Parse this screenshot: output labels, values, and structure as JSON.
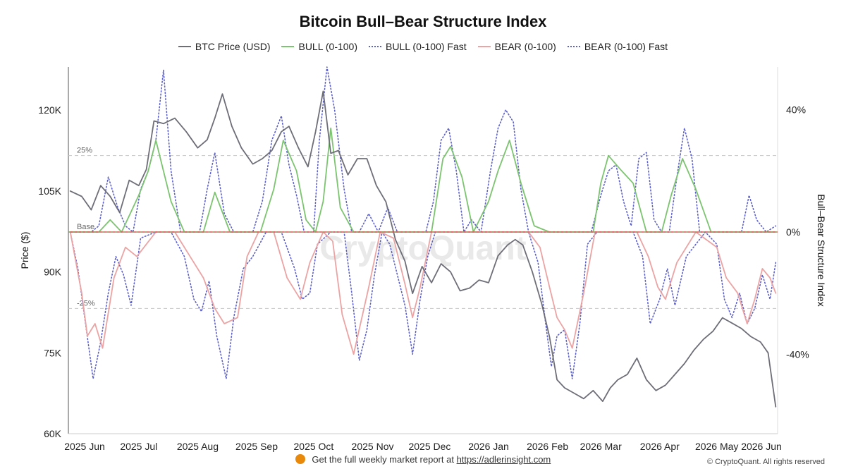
{
  "chart_data": {
    "type": "line",
    "title": "Bitcoin Bull–Bear Structure Index",
    "ylabel": "Price ($)",
    "y2label": "Bull–Bear Structure Index",
    "xlim": [
      "2025-05-25",
      "2026-06-02"
    ],
    "ylim": [
      60000,
      128000
    ],
    "y2lim": [
      -66,
      54
    ],
    "x_ticks": [
      {
        "date": "2025-06-01",
        "label": "2025 Jun"
      },
      {
        "date": "2025-07-01",
        "label": "2025 Jul"
      },
      {
        "date": "2025-08-01",
        "label": "2025 Aug"
      },
      {
        "date": "2025-09-01",
        "label": "2025 Sep"
      },
      {
        "date": "2025-10-01",
        "label": "2025 Oct"
      },
      {
        "date": "2025-11-01",
        "label": "2025 Nov"
      },
      {
        "date": "2025-12-01",
        "label": "2025 Dec"
      },
      {
        "date": "2026-01-01",
        "label": "2026 Jan"
      },
      {
        "date": "2026-02-01",
        "label": "2026 Feb"
      },
      {
        "date": "2026-03-01",
        "label": "2026 Mar"
      },
      {
        "date": "2026-04-01",
        "label": "2026 Apr"
      },
      {
        "date": "2026-05-01",
        "label": "2026 May"
      },
      {
        "date": "2026-06-01",
        "label": "2026 Jun"
      }
    ],
    "y_ticks": [
      {
        "value": 60000,
        "label": "60K"
      },
      {
        "value": 75000,
        "label": "75K"
      },
      {
        "value": 90000,
        "label": "90K"
      },
      {
        "value": 105000,
        "label": "105K"
      },
      {
        "value": 120000,
        "label": "120K"
      }
    ],
    "y2_ticks": [
      {
        "value": -40,
        "label": "-40%"
      },
      {
        "value": 0,
        "label": "0%"
      },
      {
        "value": 40,
        "label": "40%"
      }
    ],
    "reference_lines": [
      {
        "value": 25,
        "label": "25%"
      },
      {
        "value": 0,
        "label": "Base"
      },
      {
        "value": -25,
        "label": "-25%"
      }
    ],
    "grid": false,
    "legend_position": "top-center",
    "series": [
      {
        "name": "BTC Price (USD)",
        "axis": "left",
        "style": "solid",
        "color": "#6e6e78",
        "x": [
          "2025-05-26",
          "2025-06-01",
          "2025-06-06",
          "2025-06-11",
          "2025-06-16",
          "2025-06-21",
          "2025-06-26",
          "2025-07-01",
          "2025-07-05",
          "2025-07-09",
          "2025-07-14",
          "2025-07-20",
          "2025-07-26",
          "2025-08-01",
          "2025-08-06",
          "2025-08-10",
          "2025-08-14",
          "2025-08-19",
          "2025-08-24",
          "2025-08-30",
          "2025-09-04",
          "2025-09-09",
          "2025-09-14",
          "2025-09-18",
          "2025-09-23",
          "2025-09-28",
          "2025-10-02",
          "2025-10-06",
          "2025-10-10",
          "2025-10-14",
          "2025-10-19",
          "2025-10-24",
          "2025-10-29",
          "2025-11-03",
          "2025-11-08",
          "2025-11-13",
          "2025-11-18",
          "2025-11-22",
          "2025-11-27",
          "2025-12-02",
          "2025-12-07",
          "2025-12-12",
          "2025-12-17",
          "2025-12-22",
          "2025-12-27",
          "2026-01-01",
          "2026-01-06",
          "2026-01-11",
          "2026-01-15",
          "2026-01-19",
          "2026-01-24",
          "2026-01-29",
          "2026-02-02",
          "2026-02-06",
          "2026-02-10",
          "2026-02-15",
          "2026-02-20",
          "2026-02-25",
          "2026-03-02",
          "2026-03-06",
          "2026-03-10",
          "2026-03-15",
          "2026-03-20",
          "2026-03-25",
          "2026-03-30",
          "2026-04-04",
          "2026-04-09",
          "2026-04-14",
          "2026-04-19",
          "2026-04-24",
          "2026-04-29",
          "2026-05-04",
          "2026-05-09",
          "2026-05-14",
          "2026-05-19",
          "2026-05-24",
          "2026-05-28",
          "2026-06-01"
        ],
        "values": [
          105000,
          104000,
          101500,
          106000,
          104000,
          101000,
          107000,
          106000,
          109000,
          118000,
          117500,
          118500,
          116000,
          113000,
          114500,
          118500,
          123000,
          117000,
          113000,
          110000,
          111000,
          112500,
          116000,
          117000,
          113000,
          109500,
          116000,
          123500,
          112000,
          112500,
          108000,
          111000,
          111000,
          106000,
          103000,
          96000,
          92000,
          86000,
          91000,
          88000,
          91500,
          90000,
          86500,
          87000,
          88500,
          88000,
          93000,
          95000,
          96000,
          95000,
          90000,
          84000,
          78000,
          70000,
          68500,
          67500,
          66500,
          68000,
          66000,
          68500,
          70000,
          71000,
          74000,
          70000,
          68000,
          69000,
          71000,
          73000,
          75500,
          77500,
          79000,
          81500,
          80500,
          79500,
          78000,
          77000,
          75000,
          65000
        ]
      },
      {
        "name": "BULL (0-100)",
        "axis": "right",
        "style": "solid",
        "color": "#7cc46f",
        "x": [
          "2025-05-26",
          "2025-06-03",
          "2025-06-10",
          "2025-06-16",
          "2025-06-22",
          "2025-07-01",
          "2025-07-06",
          "2025-07-10",
          "2025-07-18",
          "2025-07-25",
          "2025-08-04",
          "2025-08-10",
          "2025-08-18",
          "2025-08-25",
          "2025-09-03",
          "2025-09-10",
          "2025-09-15",
          "2025-09-22",
          "2025-09-27",
          "2025-10-02",
          "2025-10-06",
          "2025-10-10",
          "2025-10-15",
          "2025-10-22",
          "2025-10-30",
          "2025-11-06",
          "2025-11-15",
          "2025-11-25",
          "2025-12-02",
          "2025-12-08",
          "2025-12-12",
          "2025-12-18",
          "2025-12-24",
          "2026-01-01",
          "2026-01-06",
          "2026-01-12",
          "2026-01-18",
          "2026-01-25",
          "2026-02-02",
          "2026-02-15",
          "2026-02-25",
          "2026-03-01",
          "2026-03-05",
          "2026-03-12",
          "2026-03-18",
          "2026-03-25",
          "2026-04-02",
          "2026-04-07",
          "2026-04-13",
          "2026-04-20",
          "2026-04-28",
          "2026-05-06",
          "2026-05-12",
          "2026-05-20",
          "2026-06-01"
        ],
        "values": [
          0,
          0,
          0,
          4,
          0,
          12,
          20,
          30,
          10,
          0,
          0,
          13,
          0,
          0,
          0,
          14,
          30,
          20,
          4,
          0,
          10,
          34,
          8,
          0,
          0,
          0,
          0,
          0,
          0,
          24,
          28,
          18,
          0,
          10,
          20,
          30,
          16,
          2,
          0,
          0,
          0,
          16,
          25,
          20,
          16,
          0,
          0,
          12,
          24,
          14,
          0,
          0,
          0,
          0,
          0
        ]
      },
      {
        "name": "BULL (0-100) Fast",
        "axis": "right",
        "style": "dotted",
        "color": "#5b5fc9",
        "x": [
          "2025-05-26",
          "2025-06-02",
          "2025-06-06",
          "2025-06-10",
          "2025-06-15",
          "2025-06-20",
          "2025-06-24",
          "2025-06-28",
          "2025-07-02",
          "2025-07-06",
          "2025-07-10",
          "2025-07-14",
          "2025-07-18",
          "2025-07-23",
          "2025-07-28",
          "2025-08-02",
          "2025-08-06",
          "2025-08-10",
          "2025-08-15",
          "2025-08-20",
          "2025-08-25",
          "2025-08-30",
          "2025-09-04",
          "2025-09-09",
          "2025-09-14",
          "2025-09-18",
          "2025-09-22",
          "2025-09-26",
          "2025-10-01",
          "2025-10-04",
          "2025-10-08",
          "2025-10-12",
          "2025-10-17",
          "2025-10-21",
          "2025-10-25",
          "2025-10-30",
          "2025-11-04",
          "2025-11-09",
          "2025-11-14",
          "2025-11-19",
          "2025-11-24",
          "2025-11-29",
          "2025-12-03",
          "2025-12-07",
          "2025-12-11",
          "2025-12-15",
          "2025-12-19",
          "2025-12-23",
          "2025-12-28",
          "2026-01-02",
          "2026-01-06",
          "2026-01-10",
          "2026-01-14",
          "2026-01-18",
          "2026-01-22",
          "2026-01-27",
          "2026-02-01",
          "2026-02-06",
          "2026-02-12",
          "2026-02-18",
          "2026-02-24",
          "2026-03-01",
          "2026-03-05",
          "2026-03-09",
          "2026-03-13",
          "2026-03-17",
          "2026-03-21",
          "2026-03-25",
          "2026-03-29",
          "2026-04-02",
          "2026-04-06",
          "2026-04-10",
          "2026-04-14",
          "2026-04-18",
          "2026-04-22",
          "2026-04-27",
          "2026-05-02",
          "2026-05-06",
          "2026-05-10",
          "2026-05-14",
          "2026-05-18",
          "2026-05-22",
          "2026-05-27",
          "2026-06-01"
        ],
        "values": [
          0,
          0,
          0,
          2,
          18,
          8,
          2,
          0,
          14,
          20,
          30,
          53,
          20,
          0,
          0,
          0,
          14,
          26,
          6,
          0,
          0,
          0,
          10,
          30,
          38,
          22,
          12,
          0,
          0,
          30,
          54,
          40,
          14,
          0,
          0,
          6,
          0,
          8,
          0,
          0,
          0,
          0,
          10,
          30,
          34,
          20,
          0,
          4,
          0,
          20,
          34,
          40,
          36,
          14,
          0,
          0,
          0,
          0,
          0,
          0,
          0,
          12,
          20,
          22,
          10,
          2,
          24,
          26,
          4,
          0,
          0,
          18,
          34,
          24,
          0,
          0,
          0,
          0,
          0,
          0,
          12,
          4,
          0,
          2
        ]
      },
      {
        "name": "BEAR (0-100)",
        "axis": "right",
        "style": "solid",
        "color": "#eba3a3",
        "x": [
          "2025-05-26",
          "2025-06-01",
          "2025-06-04",
          "2025-06-08",
          "2025-06-12",
          "2025-06-18",
          "2025-06-24",
          "2025-06-30",
          "2025-07-10",
          "2025-07-20",
          "2025-07-28",
          "2025-08-04",
          "2025-08-10",
          "2025-08-15",
          "2025-08-22",
          "2025-08-27",
          "2025-09-02",
          "2025-09-10",
          "2025-09-17",
          "2025-09-24",
          "2025-09-29",
          "2025-10-06",
          "2025-10-11",
          "2025-10-16",
          "2025-10-22",
          "2025-10-30",
          "2025-11-05",
          "2025-11-12",
          "2025-11-18",
          "2025-11-22",
          "2025-11-26",
          "2025-12-02",
          "2025-12-10",
          "2025-12-20",
          "2025-12-28",
          "2026-01-10",
          "2026-01-22",
          "2026-01-28",
          "2026-02-02",
          "2026-02-06",
          "2026-02-10",
          "2026-02-14",
          "2026-02-20",
          "2026-02-26",
          "2026-03-10",
          "2026-03-20",
          "2026-03-26",
          "2026-03-31",
          "2026-04-04",
          "2026-04-10",
          "2026-04-20",
          "2026-05-01",
          "2026-05-06",
          "2026-05-12",
          "2026-05-17",
          "2026-05-21",
          "2026-05-25",
          "2026-05-29",
          "2026-06-01"
        ],
        "values": [
          0,
          -20,
          -34,
          -30,
          -38,
          -15,
          -5,
          -8,
          0,
          0,
          -8,
          -15,
          -25,
          -30,
          -28,
          -8,
          0,
          0,
          -15,
          -22,
          -10,
          0,
          -3,
          -27,
          -40,
          -18,
          0,
          -2,
          -17,
          -28,
          -18,
          0,
          0,
          0,
          0,
          0,
          0,
          -5,
          -18,
          -28,
          -32,
          -38,
          -20,
          0,
          0,
          0,
          -8,
          -18,
          -22,
          -10,
          0,
          -5,
          -15,
          -20,
          -30,
          -22,
          -12,
          -15,
          -20
        ]
      },
      {
        "name": "BEAR (0-100) Fast",
        "axis": "right",
        "style": "dotted",
        "color": "#5b5fc9",
        "x": [
          "2025-05-26",
          "2025-05-30",
          "2025-06-03",
          "2025-06-07",
          "2025-06-11",
          "2025-06-15",
          "2025-06-19",
          "2025-06-23",
          "2025-06-27",
          "2025-07-02",
          "2025-07-10",
          "2025-07-18",
          "2025-07-25",
          "2025-07-30",
          "2025-08-03",
          "2025-08-07",
          "2025-08-11",
          "2025-08-16",
          "2025-08-20",
          "2025-08-25",
          "2025-08-30",
          "2025-09-06",
          "2025-09-14",
          "2025-09-21",
          "2025-09-25",
          "2025-09-29",
          "2025-10-03",
          "2025-10-10",
          "2025-10-17",
          "2025-10-21",
          "2025-10-25",
          "2025-10-29",
          "2025-11-02",
          "2025-11-06",
          "2025-11-10",
          "2025-11-14",
          "2025-11-18",
          "2025-11-22",
          "2025-11-26",
          "2025-11-30",
          "2025-12-04",
          "2025-12-12",
          "2025-12-20",
          "2025-12-28",
          "2026-01-06",
          "2026-01-14",
          "2026-01-22",
          "2026-01-27",
          "2026-01-31",
          "2026-02-03",
          "2026-02-06",
          "2026-02-10",
          "2026-02-14",
          "2026-02-18",
          "2026-02-22",
          "2026-02-27",
          "2026-03-08",
          "2026-03-18",
          "2026-03-23",
          "2026-03-27",
          "2026-04-01",
          "2026-04-05",
          "2026-04-09",
          "2026-04-15",
          "2026-04-25",
          "2026-05-01",
          "2026-05-05",
          "2026-05-09",
          "2026-05-13",
          "2026-05-17",
          "2026-05-21",
          "2026-05-25",
          "2026-05-29",
          "2026-06-01"
        ],
        "values": [
          0,
          -12,
          -30,
          -48,
          -36,
          -20,
          -8,
          -14,
          -24,
          -2,
          0,
          0,
          -8,
          -22,
          -26,
          -16,
          -34,
          -48,
          -28,
          -12,
          -8,
          0,
          0,
          -12,
          -22,
          -20,
          -4,
          0,
          0,
          -20,
          -42,
          -32,
          -14,
          0,
          -4,
          -14,
          -24,
          -40,
          -22,
          -8,
          0,
          0,
          0,
          0,
          0,
          0,
          0,
          -10,
          -30,
          -44,
          -34,
          -32,
          -48,
          -30,
          -4,
          0,
          0,
          0,
          -8,
          -30,
          -22,
          -12,
          -24,
          -8,
          0,
          -4,
          -22,
          -28,
          -20,
          -30,
          -25,
          -14,
          -22,
          -10
        ]
      }
    ]
  },
  "footer": {
    "text": "Get the full weekly market report at",
    "link": "https://adlerinsight.com"
  },
  "copyright": "© CryptoQuant. All rights reserved",
  "watermark": "CryptoQuant"
}
